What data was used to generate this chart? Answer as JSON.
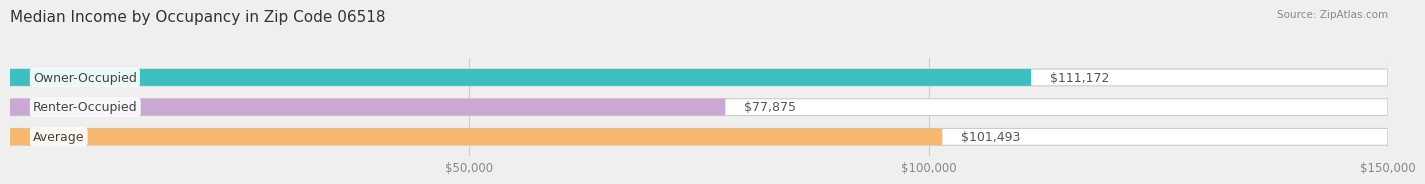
{
  "title": "Median Income by Occupancy in Zip Code 06518",
  "source": "Source: ZipAtlas.com",
  "categories": [
    "Owner-Occupied",
    "Renter-Occupied",
    "Average"
  ],
  "values": [
    111172,
    77875,
    101493
  ],
  "bar_colors": [
    "#3bbfbf",
    "#c9a8d4",
    "#f5b86e"
  ],
  "value_labels": [
    "$111,172",
    "$77,875",
    "$101,493"
  ],
  "xlim": [
    0,
    150000
  ],
  "xticks": [
    0,
    50000,
    100000,
    150000
  ],
  "xtick_labels": [
    "",
    "$50,000",
    "$100,000",
    "$150,000"
  ],
  "bar_height": 0.55,
  "background_color": "#efefef",
  "title_fontsize": 11,
  "label_fontsize": 9,
  "tick_fontsize": 8.5
}
